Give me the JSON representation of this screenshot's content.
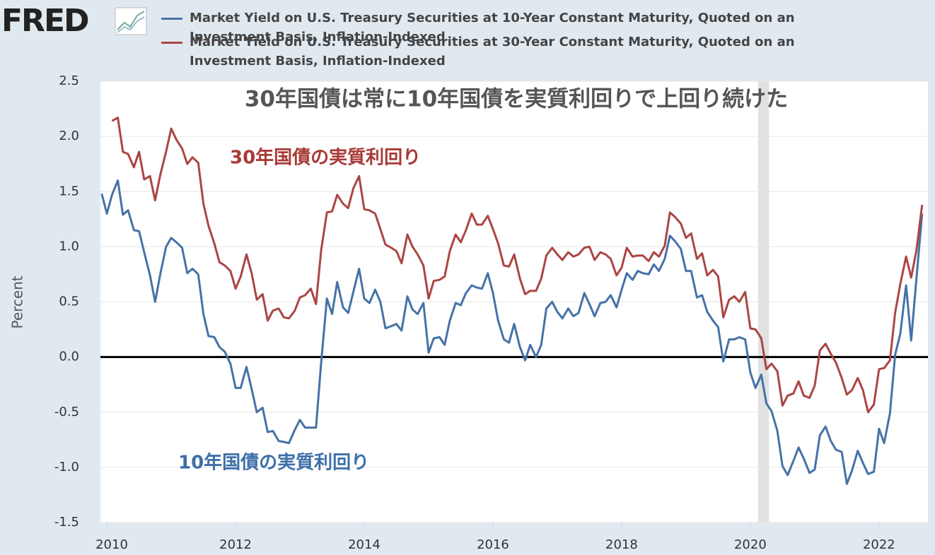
{
  "logo": "FRED",
  "chart_data": {
    "type": "line",
    "title": "30年国債は常に10年国債を実質利回りで上回り続けた",
    "ylabel": "Percent",
    "annotations": [
      {
        "text": "30年国債の実質利回り",
        "color": "#a83a36"
      },
      {
        "text": "10年国債の実質利回り",
        "color": "#3d6fa8"
      }
    ],
    "recessions": [
      [
        2020.12,
        2020.29
      ]
    ],
    "xlim": [
      2009.9,
      2022.76
    ],
    "xticks": [
      2010,
      2012,
      2014,
      2016,
      2018,
      2020,
      2022
    ],
    "ylim": [
      -1.5,
      2.5
    ],
    "yticks": [
      -1.5,
      {
        "value": -1,
        "label": "-1.0"
      },
      -0.5,
      {
        "value": 0,
        "label": "0.0"
      },
      0.5,
      {
        "value": 1,
        "label": "1.0"
      },
      1.5,
      {
        "value": 2,
        "label": "2.0"
      },
      2.5
    ],
    "grid": true,
    "x": [
      2009.92,
      2010.0,
      2010.08,
      2010.17,
      2010.25,
      2010.33,
      2010.42,
      2010.5,
      2010.58,
      2010.67,
      2010.75,
      2010.83,
      2010.92,
      2011.0,
      2011.08,
      2011.17,
      2011.25,
      2011.33,
      2011.42,
      2011.5,
      2011.58,
      2011.67,
      2011.75,
      2011.83,
      2011.92,
      2012.0,
      2012.08,
      2012.17,
      2012.25,
      2012.33,
      2012.42,
      2012.5,
      2012.58,
      2012.67,
      2012.75,
      2012.83,
      2012.92,
      2013.0,
      2013.08,
      2013.17,
      2013.25,
      2013.33,
      2013.42,
      2013.5,
      2013.58,
      2013.67,
      2013.75,
      2013.83,
      2013.92,
      2014.0,
      2014.08,
      2014.17,
      2014.25,
      2014.33,
      2014.42,
      2014.5,
      2014.58,
      2014.67,
      2014.75,
      2014.83,
      2014.92,
      2015.0,
      2015.08,
      2015.17,
      2015.25,
      2015.33,
      2015.42,
      2015.5,
      2015.58,
      2015.67,
      2015.75,
      2015.83,
      2015.92,
      2016.0,
      2016.08,
      2016.17,
      2016.25,
      2016.33,
      2016.42,
      2016.5,
      2016.58,
      2016.67,
      2016.75,
      2016.83,
      2016.92,
      2017.0,
      2017.08,
      2017.17,
      2017.25,
      2017.33,
      2017.42,
      2017.5,
      2017.58,
      2017.67,
      2017.75,
      2017.83,
      2017.92,
      2018.0,
      2018.08,
      2018.17,
      2018.25,
      2018.33,
      2018.42,
      2018.5,
      2018.58,
      2018.67,
      2018.75,
      2018.83,
      2018.92,
      2019.0,
      2019.08,
      2019.17,
      2019.25,
      2019.33,
      2019.42,
      2019.5,
      2019.58,
      2019.67,
      2019.75,
      2019.83,
      2019.92,
      2020.0,
      2020.08,
      2020.17,
      2020.25,
      2020.33,
      2020.42,
      2020.5,
      2020.58,
      2020.67,
      2020.75,
      2020.83,
      2020.92,
      2021.0,
      2021.08,
      2021.17,
      2021.25,
      2021.33,
      2021.42,
      2021.5,
      2021.58,
      2021.67,
      2021.75,
      2021.83,
      2021.92,
      2022.0,
      2022.08,
      2022.17,
      2022.25,
      2022.33,
      2022.42,
      2022.5,
      2022.58,
      2022.67
    ],
    "series": [
      {
        "name": "Market Yield on U.S. Treasury Securities at 10-Year Constant Maturity, Quoted on an Investment Basis, Inflation-Indexed",
        "color": "#4572a7",
        "values": [
          1.48,
          1.3,
          1.47,
          1.6,
          1.29,
          1.33,
          1.15,
          1.14,
          0.95,
          0.74,
          0.5,
          0.75,
          1.0,
          1.08,
          1.04,
          0.99,
          0.76,
          0.8,
          0.75,
          0.39,
          0.19,
          0.18,
          0.09,
          0.05,
          -0.06,
          -0.28,
          -0.28,
          -0.09,
          -0.29,
          -0.5,
          -0.46,
          -0.68,
          -0.67,
          -0.76,
          -0.77,
          -0.78,
          -0.66,
          -0.57,
          -0.64,
          -0.64,
          -0.64,
          -0.05,
          0.53,
          0.39,
          0.68,
          0.45,
          0.4,
          0.59,
          0.8,
          0.53,
          0.49,
          0.61,
          0.5,
          0.26,
          0.28,
          0.3,
          0.24,
          0.55,
          0.43,
          0.39,
          0.49,
          0.04,
          0.17,
          0.18,
          0.11,
          0.33,
          0.49,
          0.47,
          0.58,
          0.65,
          0.63,
          0.62,
          0.76,
          0.58,
          0.33,
          0.16,
          0.13,
          0.3,
          0.09,
          -0.03,
          0.11,
          0.0,
          0.11,
          0.44,
          0.5,
          0.41,
          0.35,
          0.44,
          0.37,
          0.4,
          0.58,
          0.48,
          0.37,
          0.49,
          0.5,
          0.56,
          0.45,
          0.61,
          0.76,
          0.7,
          0.78,
          0.76,
          0.75,
          0.84,
          0.78,
          0.89,
          1.1,
          1.05,
          0.98,
          0.78,
          0.78,
          0.54,
          0.56,
          0.41,
          0.33,
          0.27,
          -0.04,
          0.16,
          0.16,
          0.18,
          0.16,
          -0.14,
          -0.28,
          -0.16,
          -0.42,
          -0.49,
          -0.67,
          -0.99,
          -1.07,
          -0.94,
          -0.82,
          -0.92,
          -1.05,
          -1.02,
          -0.71,
          -0.63,
          -0.76,
          -0.84,
          -0.86,
          -1.15,
          -1.03,
          -0.85,
          -0.96,
          -1.06,
          -1.04,
          -0.65,
          -0.78,
          -0.51,
          0.02,
          0.21,
          0.65,
          0.15,
          0.7,
          1.3
        ]
      },
      {
        "name": "Market Yield on U.S. Treasury Securities at 30-Year Constant Maturity, Quoted on an Investment Basis, Inflation-Indexed",
        "color": "#aa4643",
        "values": [
          null,
          null,
          2.14,
          2.17,
          1.86,
          1.84,
          1.72,
          1.86,
          1.61,
          1.64,
          1.42,
          1.65,
          1.86,
          2.07,
          1.97,
          1.89,
          1.75,
          1.81,
          1.76,
          1.39,
          1.19,
          1.03,
          0.86,
          0.83,
          0.78,
          0.62,
          0.73,
          0.93,
          0.76,
          0.52,
          0.57,
          0.33,
          0.42,
          0.44,
          0.36,
          0.35,
          0.42,
          0.54,
          0.56,
          0.62,
          0.48,
          0.97,
          1.31,
          1.32,
          1.47,
          1.39,
          1.35,
          1.53,
          1.64,
          1.34,
          1.33,
          1.3,
          1.16,
          1.02,
          0.99,
          0.96,
          0.85,
          1.11,
          1.0,
          0.93,
          0.83,
          0.53,
          0.69,
          0.7,
          0.73,
          0.96,
          1.11,
          1.04,
          1.15,
          1.3,
          1.2,
          1.2,
          1.28,
          1.16,
          1.03,
          0.83,
          0.82,
          0.93,
          0.71,
          0.57,
          0.6,
          0.6,
          0.71,
          0.92,
          0.99,
          0.93,
          0.88,
          0.95,
          0.91,
          0.93,
          0.99,
          1.0,
          0.88,
          0.95,
          0.93,
          0.89,
          0.74,
          0.81,
          0.99,
          0.91,
          0.92,
          0.92,
          0.87,
          0.95,
          0.91,
          1.01,
          1.31,
          1.27,
          1.21,
          1.08,
          1.12,
          0.89,
          0.94,
          0.74,
          0.79,
          0.73,
          0.36,
          0.52,
          0.55,
          0.5,
          0.59,
          0.26,
          0.25,
          0.17,
          -0.11,
          -0.06,
          -0.13,
          -0.44,
          -0.35,
          -0.33,
          -0.22,
          -0.35,
          -0.37,
          -0.26,
          0.06,
          0.12,
          0.03,
          -0.05,
          -0.19,
          -0.34,
          -0.3,
          -0.19,
          -0.3,
          -0.5,
          -0.43,
          -0.11,
          -0.1,
          -0.03,
          0.4,
          0.66,
          0.91,
          0.72,
          0.96,
          1.38
        ]
      }
    ]
  }
}
